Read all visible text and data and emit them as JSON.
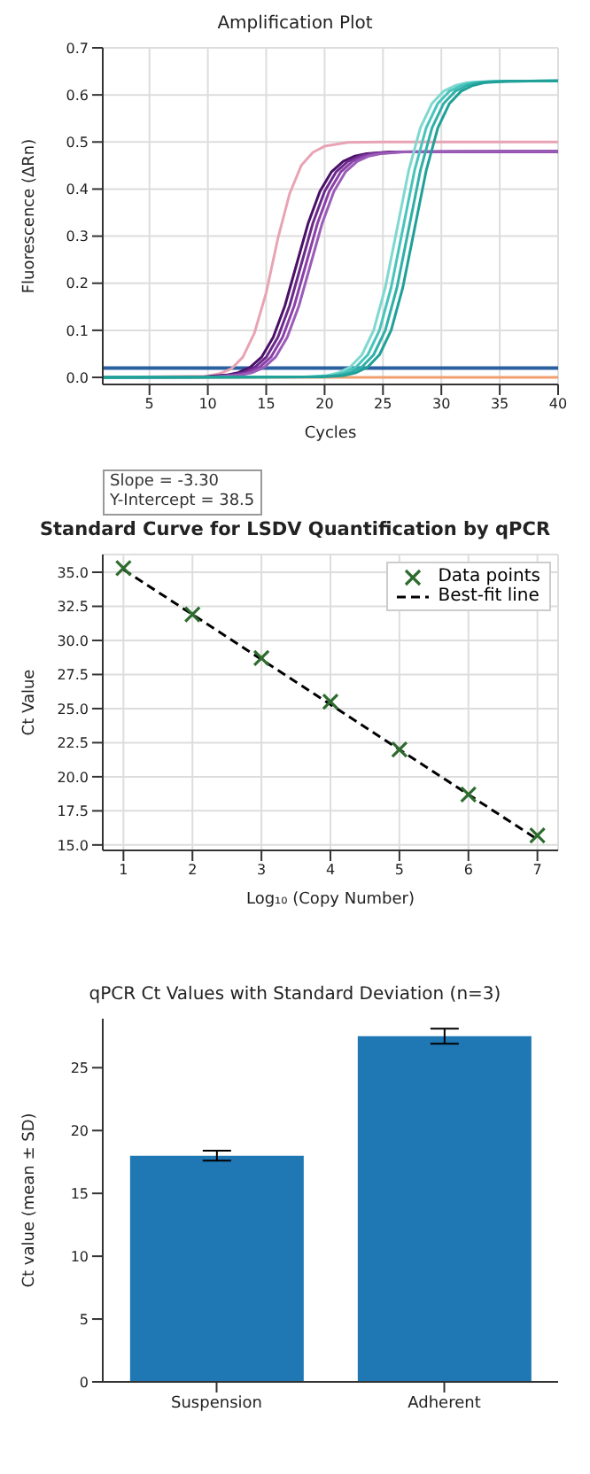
{
  "chart_data": [
    {
      "type": "line",
      "title": "Amplification Plot",
      "xlabel": "Cycles",
      "ylabel": "Fluorescence (ΔRn)",
      "xlim": [
        1,
        40
      ],
      "ylim": [
        -0.015,
        0.7
      ],
      "xticks": [
        5,
        10,
        15,
        20,
        25,
        30,
        35,
        40
      ],
      "yticks": [
        {
          "value": 0,
          "label": "0.0"
        },
        {
          "value": 0.1,
          "label": "0.1"
        },
        {
          "value": 0.2,
          "label": "0.2"
        },
        {
          "value": 0.3,
          "label": "0.3"
        },
        {
          "value": 0.4,
          "label": "0.4"
        },
        {
          "value": 0.5,
          "label": "0.5"
        },
        {
          "value": 0.6,
          "label": "0.6"
        },
        {
          "value": 0.7,
          "label": "0.7"
        }
      ],
      "grid": true,
      "ref_lines": [
        {
          "axis": "y",
          "value": 0.02,
          "color": "#2a5fa0"
        }
      ],
      "series": [
        {
          "color": "#f0a070",
          "x": [
            1,
            40
          ],
          "values": [
            0,
            0
          ]
        },
        {
          "color": "#e8a4b4",
          "x": [
            1,
            10,
            11,
            12,
            13,
            14,
            15,
            16,
            17,
            18,
            19,
            20,
            22,
            25,
            40
          ],
          "values": [
            0,
            0.003,
            0.008,
            0.018,
            0.043,
            0.095,
            0.18,
            0.295,
            0.39,
            0.45,
            0.478,
            0.491,
            0.499,
            0.5,
            0.5
          ]
        },
        {
          "color": "#4a1068",
          "x": [
            1,
            9.6,
            11.6,
            12.6,
            13.6,
            14.6,
            15.6,
            16.6,
            17.6,
            18.6,
            19.6,
            20.6,
            21.6,
            22.6,
            23.6,
            25.6,
            40
          ],
          "values": [
            0,
            0.001,
            0.005,
            0.01,
            0.021,
            0.043,
            0.085,
            0.152,
            0.24,
            0.328,
            0.395,
            0.437,
            0.459,
            0.47,
            0.475,
            0.479,
            0.48
          ]
        },
        {
          "color": "#6a2a8a",
          "x": [
            1,
            10,
            12,
            13,
            14,
            15,
            16,
            17,
            18,
            19,
            20,
            21,
            22,
            23,
            24,
            26,
            40
          ],
          "values": [
            0,
            0.001,
            0.005,
            0.01,
            0.021,
            0.043,
            0.085,
            0.152,
            0.24,
            0.328,
            0.395,
            0.437,
            0.459,
            0.47,
            0.475,
            0.479,
            0.48
          ]
        },
        {
          "color": "#8a40a8",
          "x": [
            1,
            10.4,
            12.4,
            13.4,
            14.4,
            15.4,
            16.4,
            17.4,
            18.4,
            19.4,
            20.4,
            21.4,
            22.4,
            23.4,
            24.4,
            26.4,
            40
          ],
          "values": [
            0,
            0.001,
            0.005,
            0.01,
            0.021,
            0.043,
            0.085,
            0.152,
            0.24,
            0.328,
            0.395,
            0.437,
            0.459,
            0.47,
            0.475,
            0.479,
            0.48
          ]
        },
        {
          "color": "#9b5cb8",
          "x": [
            1,
            10.8,
            12.8,
            13.8,
            14.8,
            15.8,
            16.8,
            17.8,
            18.8,
            19.8,
            20.8,
            21.8,
            22.8,
            23.8,
            24.8,
            26.8,
            40
          ],
          "values": [
            0,
            0.001,
            0.005,
            0.01,
            0.021,
            0.043,
            0.085,
            0.152,
            0.24,
            0.328,
            0.395,
            0.437,
            0.459,
            0.47,
            0.475,
            0.479,
            0.48
          ]
        },
        {
          "color": "#7fd8d0",
          "x": [
            1,
            18.2,
            20.2,
            21.2,
            22.2,
            23.2,
            24.2,
            25.2,
            26.2,
            27.2,
            28.2,
            29.2,
            30.2,
            31.2,
            32.2,
            34.2,
            40
          ],
          "values": [
            0,
            0.001,
            0.004,
            0.01,
            0.022,
            0.048,
            0.1,
            0.191,
            0.315,
            0.439,
            0.53,
            0.582,
            0.608,
            0.62,
            0.626,
            0.629,
            0.63
          ]
        },
        {
          "color": "#48c4bc",
          "x": [
            1,
            18.7,
            20.7,
            21.7,
            22.7,
            23.7,
            24.7,
            25.7,
            26.7,
            27.7,
            28.7,
            29.7,
            30.7,
            31.7,
            32.7,
            34.7,
            40
          ],
          "values": [
            0,
            0.001,
            0.004,
            0.01,
            0.022,
            0.048,
            0.1,
            0.191,
            0.315,
            0.439,
            0.53,
            0.582,
            0.608,
            0.62,
            0.626,
            0.629,
            0.63
          ]
        },
        {
          "color": "#30b0a8",
          "x": [
            1,
            19.2,
            21.2,
            22.2,
            23.2,
            24.2,
            25.2,
            26.2,
            27.2,
            28.2,
            29.2,
            30.2,
            31.2,
            32.2,
            33.2,
            35.2,
            40
          ],
          "values": [
            0,
            0.001,
            0.004,
            0.01,
            0.022,
            0.048,
            0.1,
            0.191,
            0.315,
            0.439,
            0.53,
            0.582,
            0.608,
            0.62,
            0.626,
            0.629,
            0.63
          ]
        },
        {
          "color": "#20a098",
          "x": [
            1,
            19.7,
            21.7,
            22.7,
            23.7,
            24.7,
            25.7,
            26.7,
            27.7,
            28.7,
            29.7,
            30.7,
            31.7,
            32.7,
            33.7,
            35.7,
            40
          ],
          "values": [
            0,
            0.001,
            0.004,
            0.01,
            0.022,
            0.048,
            0.1,
            0.191,
            0.315,
            0.439,
            0.53,
            0.582,
            0.608,
            0.62,
            0.626,
            0.629,
            0.63
          ]
        }
      ]
    },
    {
      "type": "scatter",
      "title": "Standard Curve for LSDV Quantification by qPCR",
      "xlabel": "Log₁₀ (Copy Number)",
      "ylabel": "Ct Value",
      "annotations": [
        "Slope = -3.30",
        "Y-Intercept = 38.5"
      ],
      "xlim": [
        0.7,
        7.3
      ],
      "ylim": [
        14.6,
        36.3
      ],
      "xticks": [
        1,
        2,
        3,
        4,
        5,
        6,
        7
      ],
      "yticks": [
        {
          "value": 15,
          "label": "15.0"
        },
        {
          "value": 17.5,
          "label": "17.5"
        },
        {
          "value": 20,
          "label": "20.0"
        },
        {
          "value": 22.5,
          "label": "22.5"
        },
        {
          "value": 25,
          "label": "25.0"
        },
        {
          "value": 27.5,
          "label": "27.5"
        },
        {
          "value": 30,
          "label": "30.0"
        },
        {
          "value": 32.5,
          "label": "32.5"
        },
        {
          "value": 35,
          "label": "35.0"
        }
      ],
      "grid": true,
      "legend": "top right",
      "series": [
        {
          "name": "Data points",
          "type": "scatter",
          "marker": "cross",
          "color": "#2e6b2e",
          "x": [
            1,
            2,
            3,
            4,
            5,
            6,
            7
          ],
          "values": [
            35.3,
            31.9,
            28.7,
            25.5,
            22,
            18.7,
            15.7
          ]
        },
        {
          "name": "Best-fit line",
          "type": "line",
          "line_style": "dashed",
          "color": "#000000",
          "x": [
            1,
            7
          ],
          "values": [
            35.2,
            15.4
          ]
        }
      ]
    },
    {
      "type": "bar",
      "title": "qPCR Ct Values with Standard Deviation (n=3)",
      "ylabel": "Ct value (mean ± SD)",
      "categories": [
        "Suspension",
        "Adherent"
      ],
      "values": [
        18,
        27.5
      ],
      "errors": [
        0.4,
        0.6
      ],
      "color": "#1f77b4",
      "ylim": [
        0,
        28.9
      ],
      "yticks": [
        0,
        5,
        10,
        15,
        20,
        25
      ]
    }
  ]
}
